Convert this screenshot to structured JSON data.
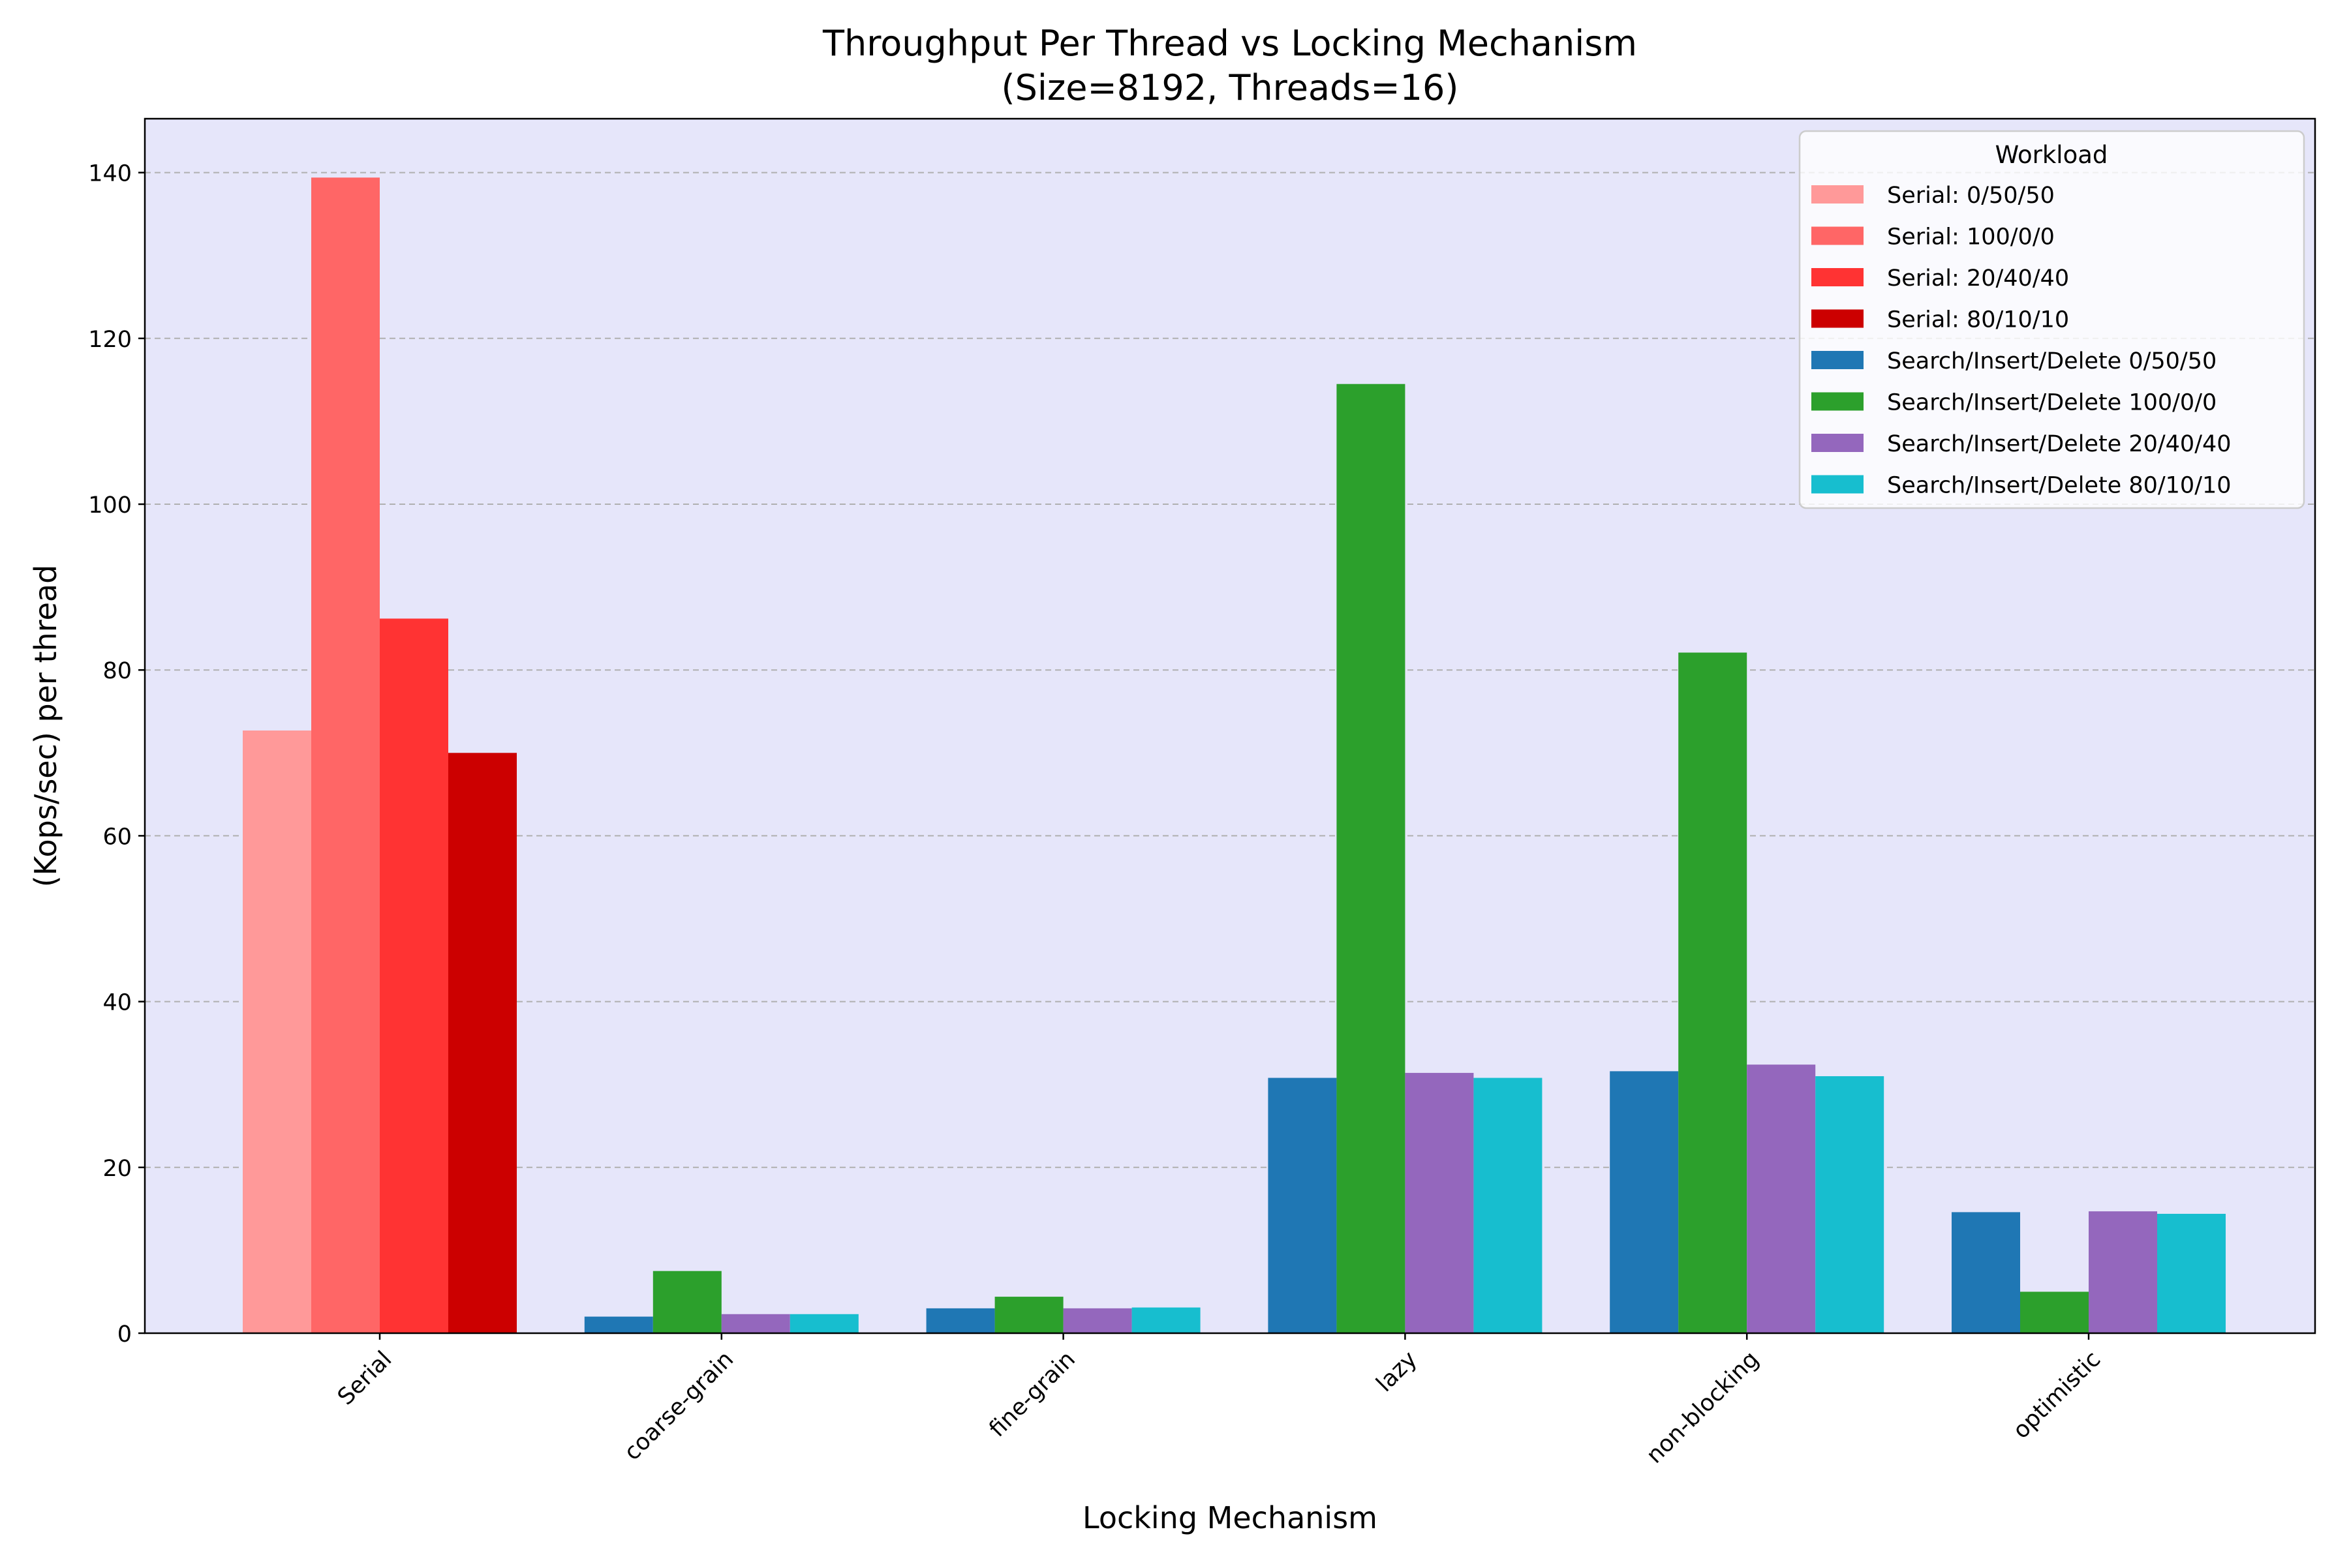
{
  "chart_data": {
    "type": "bar",
    "title": "Throughput Per Thread vs Locking Mechanism",
    "subtitle": "(Size=8192, Threads=16)",
    "xlabel": "Locking Mechanism",
    "ylabel": "(Kops/sec) per thread",
    "ylim": [
      0,
      146.5
    ],
    "yticks": [
      0,
      20,
      40,
      60,
      80,
      100,
      120,
      140
    ],
    "grid": true,
    "background": "#e6e6fa",
    "legend": {
      "title": "Workload",
      "position": "top-right"
    },
    "categories": [
      "Serial",
      "coarse-grain",
      "fine-grain",
      "lazy",
      "non-blocking",
      "optimistic"
    ],
    "series": [
      {
        "name": "Serial: 0/50/50",
        "color": "#ff9999",
        "values": [
          72.7,
          null,
          null,
          null,
          null,
          null
        ]
      },
      {
        "name": "Serial: 100/0/0",
        "color": "#ff6666",
        "values": [
          139.4,
          null,
          null,
          null,
          null,
          null
        ]
      },
      {
        "name": "Serial: 20/40/40",
        "color": "#ff3333",
        "values": [
          86.2,
          null,
          null,
          null,
          null,
          null
        ]
      },
      {
        "name": "Serial: 80/10/10",
        "color": "#cc0000",
        "values": [
          70.0,
          null,
          null,
          null,
          null,
          null
        ]
      },
      {
        "name": "Search/Insert/Delete 0/50/50",
        "color": "#1f77b4",
        "values": [
          null,
          2.0,
          3.0,
          30.8,
          31.6,
          14.6
        ]
      },
      {
        "name": "Search/Insert/Delete 100/0/0",
        "color": "#2ca02c",
        "values": [
          null,
          7.5,
          4.4,
          114.5,
          82.1,
          5.0
        ]
      },
      {
        "name": "Search/Insert/Delete 20/40/40",
        "color": "#9467bd",
        "values": [
          null,
          2.3,
          3.0,
          31.4,
          32.4,
          14.7
        ]
      },
      {
        "name": "Search/Insert/Delete 80/10/10",
        "color": "#17becf",
        "values": [
          null,
          2.3,
          3.1,
          30.8,
          31.0,
          14.4
        ]
      }
    ]
  }
}
